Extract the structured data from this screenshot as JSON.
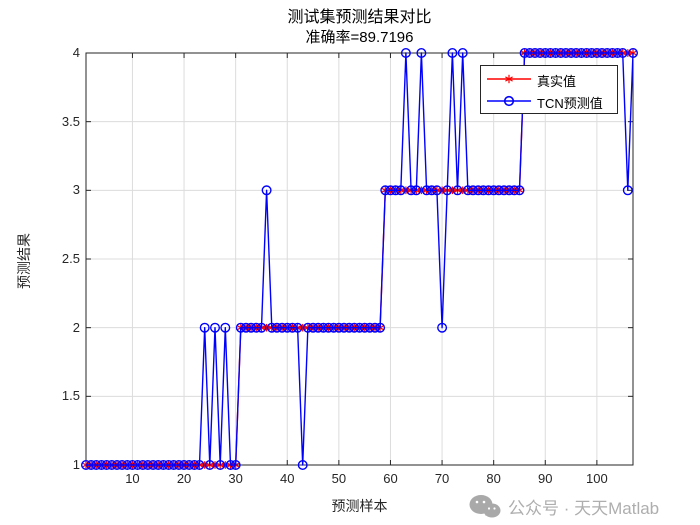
{
  "title": "测试集预测结果对比",
  "subtitle": "准确率=89.7196",
  "watermark": "公众号 · 天天Matlab",
  "legend": {
    "entries": [
      {
        "label": "真实值",
        "color": "#ff0000",
        "marker": "asterisk"
      },
      {
        "label": "TCN预测值",
        "color": "#0000ff",
        "marker": "circle"
      }
    ],
    "position": "northeast"
  },
  "chart_data": {
    "type": "line",
    "title": "测试集预测结果对比",
    "subtitle": "准确率=89.7196",
    "xlabel": "预测样本",
    "ylabel": "预测结果",
    "x_range": [
      1,
      107
    ],
    "xlim": [
      1,
      107
    ],
    "ylim": [
      1,
      4
    ],
    "xticks": [
      10,
      20,
      30,
      40,
      50,
      60,
      70,
      80,
      90,
      100
    ],
    "yticks": [
      1,
      1.5,
      2,
      2.5,
      3,
      3.5,
      4
    ],
    "grid": true,
    "accuracy_percent": 89.7196,
    "series": [
      {
        "name": "真实值",
        "color": "#ff0000",
        "marker": "asterisk",
        "values": [
          1,
          1,
          1,
          1,
          1,
          1,
          1,
          1,
          1,
          1,
          1,
          1,
          1,
          1,
          1,
          1,
          1,
          1,
          1,
          1,
          1,
          1,
          1,
          1,
          1,
          1,
          1,
          1,
          1,
          1,
          2,
          2,
          2,
          2,
          2,
          2,
          2,
          2,
          2,
          2,
          2,
          2,
          2,
          2,
          2,
          2,
          2,
          2,
          2,
          2,
          2,
          2,
          2,
          2,
          2,
          2,
          2,
          2,
          3,
          3,
          3,
          3,
          3,
          3,
          3,
          3,
          3,
          3,
          3,
          3,
          3,
          3,
          3,
          3,
          3,
          3,
          3,
          3,
          3,
          3,
          3,
          3,
          3,
          3,
          3,
          4,
          4,
          4,
          4,
          4,
          4,
          4,
          4,
          4,
          4,
          4,
          4,
          4,
          4,
          4,
          4,
          4,
          4,
          4,
          4,
          4,
          4
        ]
      },
      {
        "name": "TCN预测值",
        "color": "#0000ff",
        "marker": "circle",
        "values": [
          1,
          1,
          1,
          1,
          1,
          1,
          1,
          1,
          1,
          1,
          1,
          1,
          1,
          1,
          1,
          1,
          1,
          1,
          1,
          1,
          1,
          1,
          1,
          2,
          1,
          2,
          1,
          2,
          1,
          1,
          2,
          2,
          2,
          2,
          2,
          3,
          2,
          2,
          2,
          2,
          2,
          2,
          1,
          2,
          2,
          2,
          2,
          2,
          2,
          2,
          2,
          2,
          2,
          2,
          2,
          2,
          2,
          2,
          3,
          3,
          3,
          3,
          4,
          3,
          3,
          4,
          3,
          3,
          3,
          2,
          3,
          4,
          3,
          4,
          3,
          3,
          3,
          3,
          3,
          3,
          3,
          3,
          3,
          3,
          3,
          4,
          4,
          4,
          4,
          4,
          4,
          4,
          4,
          4,
          4,
          4,
          4,
          4,
          4,
          4,
          4,
          4,
          4,
          4,
          4,
          3,
          4
        ]
      }
    ]
  }
}
